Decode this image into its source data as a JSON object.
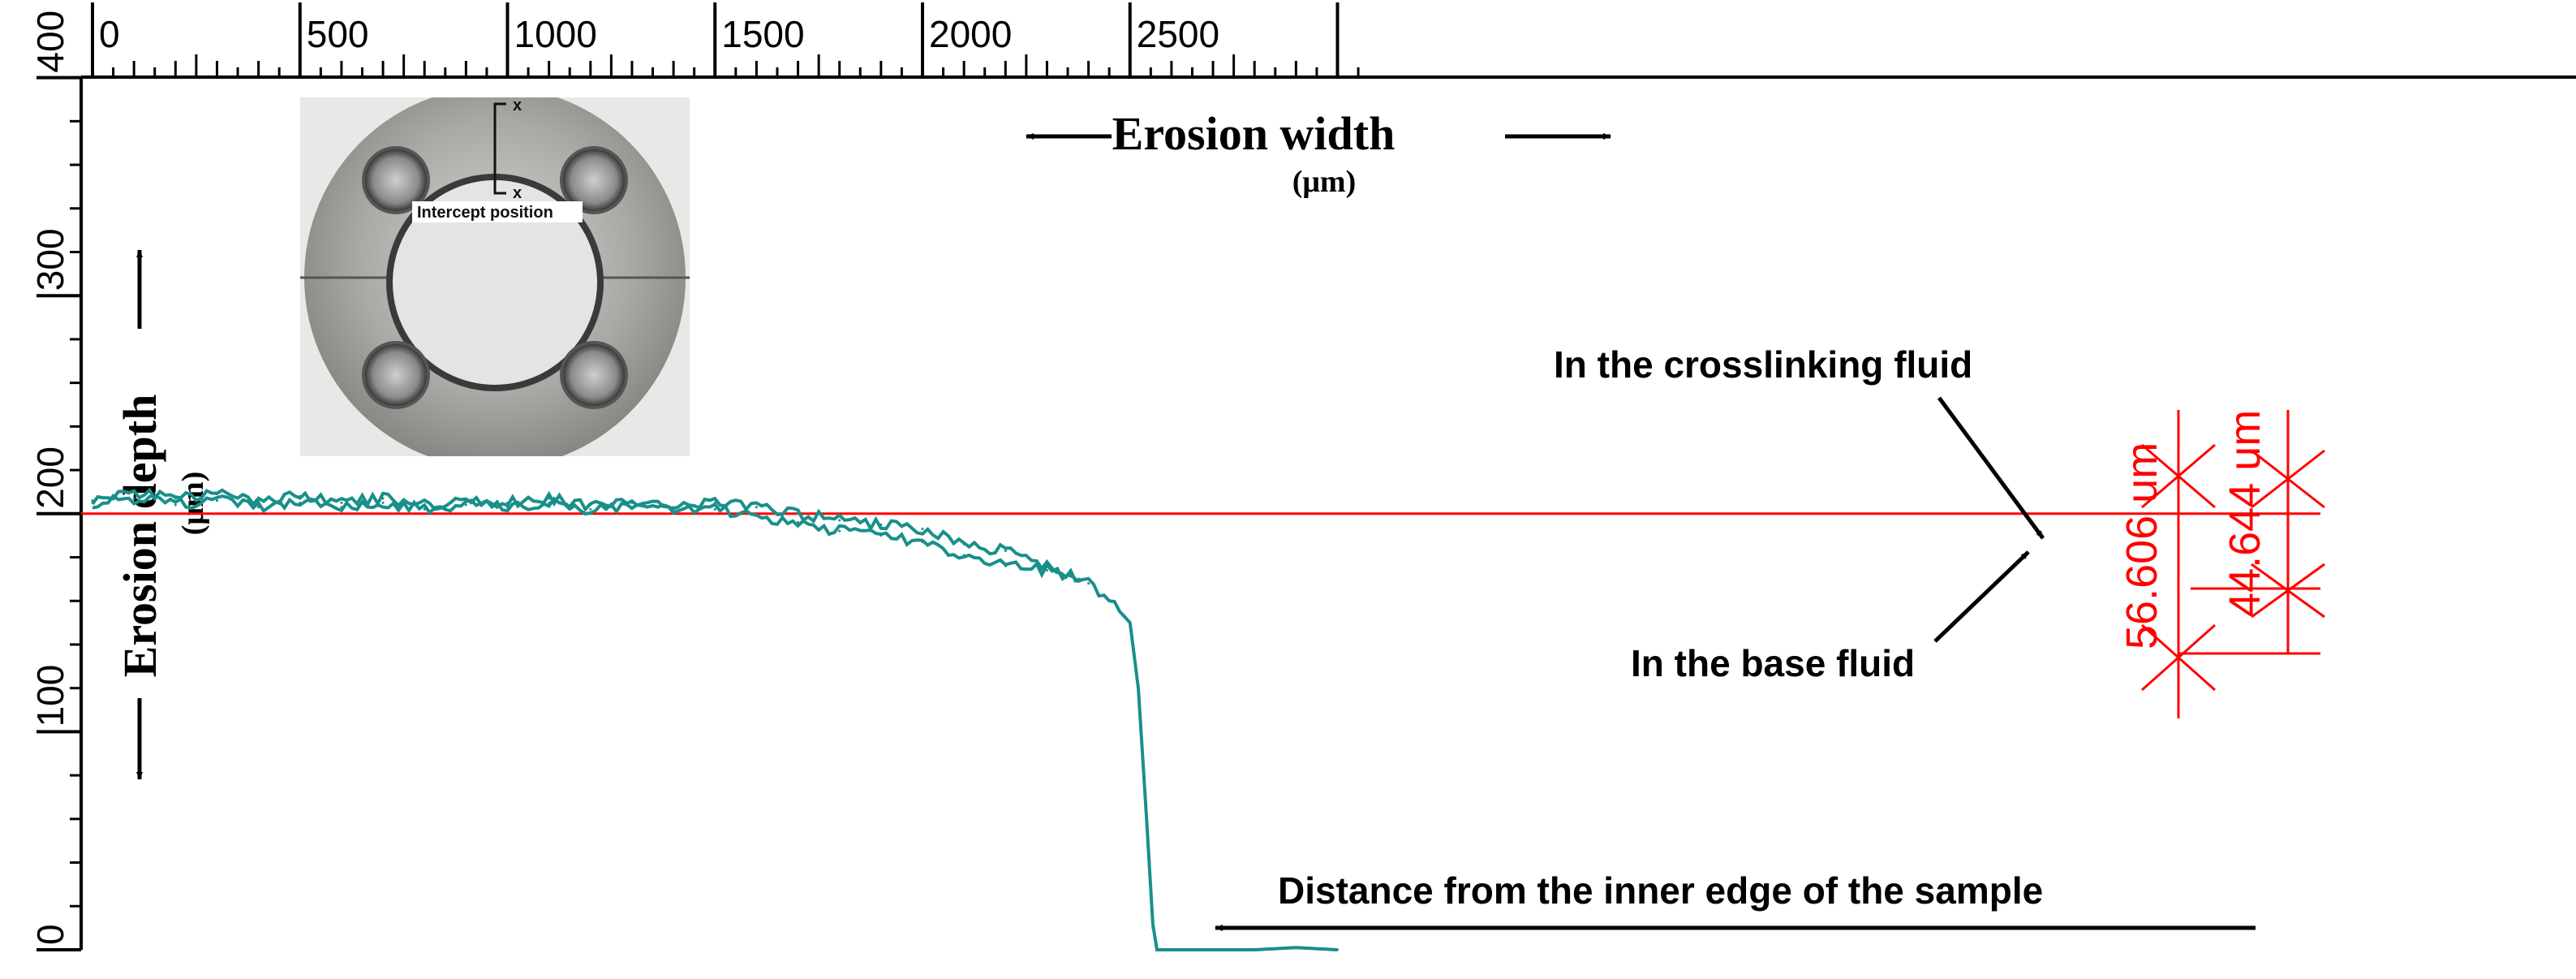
{
  "chart_data": {
    "type": "line",
    "title": "",
    "xlabel": "Erosion width",
    "xlabel_unit": "(μm)",
    "ylabel": "Erosion depth",
    "ylabel_unit": "(μm)",
    "xlim": [
      0,
      3050
    ],
    "ylim": [
      0,
      410
    ],
    "x_ticks": [
      0,
      500,
      1000,
      1500,
      2000,
      2500
    ],
    "x_tick_labels": [
      "0",
      "500",
      "1000",
      "1500",
      "2000",
      "2500"
    ],
    "y_ticks": [
      0,
      100,
      200,
      300,
      400
    ],
    "y_tick_labels": [
      "0",
      "100",
      "200",
      "300",
      "400"
    ],
    "grid": false,
    "reference_line": {
      "y": 200,
      "color": "#ff0000"
    },
    "series": [
      {
        "name": "In the crosslinking fluid",
        "color": "#1a8f8a",
        "x": [
          0,
          100,
          200,
          300,
          400,
          500,
          600,
          700,
          800,
          900,
          1000,
          1100,
          1200,
          1300,
          1400,
          1500,
          1600,
          1700,
          1800,
          1900,
          2000,
          2100,
          2200,
          2300,
          2380
        ],
        "y": [
          206,
          210,
          207,
          209,
          206,
          208,
          205,
          207,
          204,
          206,
          205,
          207,
          204,
          205,
          203,
          205,
          203,
          200,
          197,
          195,
          193,
          186,
          183,
          176,
          170
        ]
      },
      {
        "name": "In the base fluid",
        "color": "#1a8f8a",
        "x": [
          0,
          100,
          200,
          300,
          400,
          500,
          600,
          700,
          800,
          900,
          1000,
          1100,
          1200,
          1300,
          1400,
          1500,
          1600,
          1700,
          1800,
          1900,
          2000,
          2100,
          2200,
          2300,
          2400,
          2450,
          2500,
          2520,
          2540,
          2555,
          2565,
          2580,
          2700,
          2800,
          2900,
          3000
        ],
        "y": [
          205,
          207,
          204,
          206,
          203,
          205,
          203,
          205,
          202,
          204,
          203,
          205,
          202,
          203,
          201,
          202,
          199,
          196,
          192,
          190,
          187,
          181,
          176,
          174,
          168,
          160,
          150,
          120,
          60,
          10,
          0,
          0,
          0,
          0,
          1,
          0
        ]
      }
    ],
    "annotations": [
      "In the crosslinking fluid",
      "In the base fluid",
      "Distance from the inner edge of the sample",
      "56.606 um",
      "44.644 um"
    ]
  },
  "inset": {
    "label": "Intercept position",
    "marker_top": "x",
    "marker_bottom": "x"
  },
  "labels": {
    "erosion_width": "Erosion width",
    "erosion_width_unit": "(μm)",
    "erosion_depth": "Erosion depth",
    "erosion_depth_unit": "(μm)",
    "crosslinking": "In the crosslinking fluid",
    "base": "In the base fluid",
    "distance": "Distance from the inner edge of the sample",
    "dim1": "56.606 um",
    "dim2": "44.644 um"
  }
}
